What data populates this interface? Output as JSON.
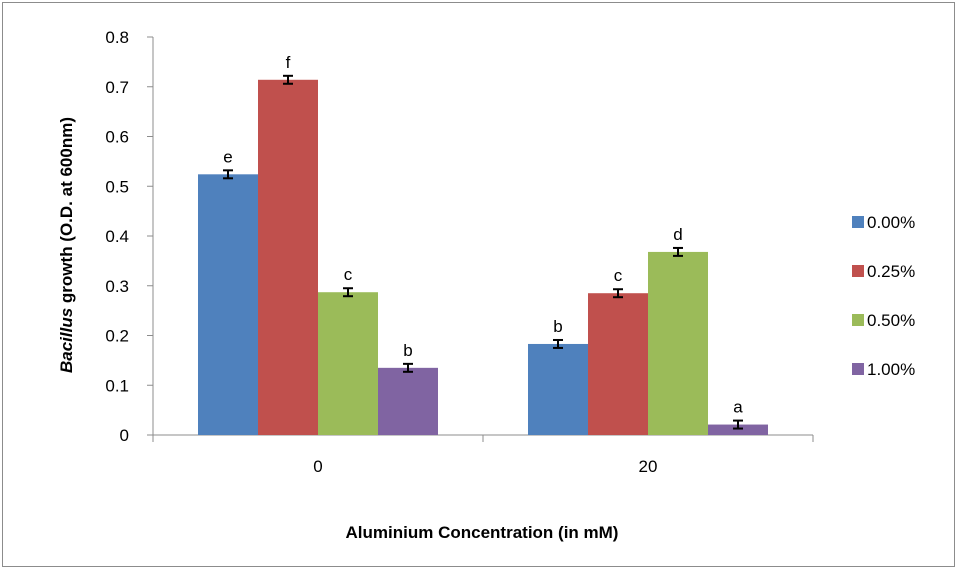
{
  "chart_data": {
    "type": "bar",
    "title": "",
    "ylabel_italic": "Bacillus",
    "ylabel_rest": " growth (O.D. at 600nm)",
    "xlabel": "Aluminium Concentration (in mM)",
    "ylim": [
      0,
      0.8
    ],
    "yticks": [
      "0",
      "0.1",
      "0.2",
      "0.3",
      "0.4",
      "0.5",
      "0.6",
      "0.7",
      "0.8"
    ],
    "categories": [
      "0",
      "20"
    ],
    "grid": false,
    "legend_position": "right",
    "series": [
      {
        "name": "0.00%",
        "color": "#4f81bd",
        "values": [
          0.524,
          0.183
        ],
        "errors": [
          0.008,
          0.008
        ],
        "letters": [
          "e",
          "b"
        ]
      },
      {
        "name": "0.25%",
        "color": "#c0504d",
        "values": [
          0.714,
          0.285
        ],
        "errors": [
          0.008,
          0.008
        ],
        "letters": [
          "f",
          "c"
        ]
      },
      {
        "name": "0.50%",
        "color": "#9bbb59",
        "values": [
          0.287,
          0.368
        ],
        "errors": [
          0.008,
          0.008
        ],
        "letters": [
          "c",
          "d"
        ]
      },
      {
        "name": "1.00%",
        "color": "#8064a2",
        "values": [
          0.135,
          0.021
        ],
        "errors": [
          0.008,
          0.008
        ],
        "letters": [
          "b",
          "a"
        ]
      }
    ]
  }
}
